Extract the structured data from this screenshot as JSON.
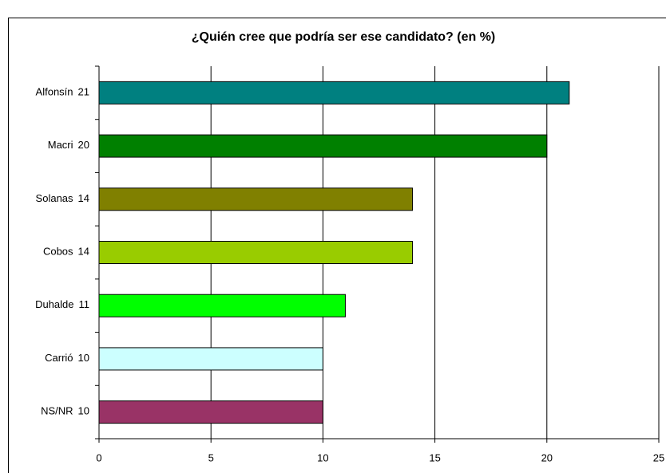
{
  "chart_data": {
    "type": "bar",
    "orientation": "horizontal",
    "title": "¿Quién cree que podría ser ese candidato? (en %)",
    "categories": [
      "Alfonsín",
      "Macri",
      "Solanas",
      "Cobos",
      "Duhalde",
      "Carrió",
      "NS/NR"
    ],
    "values": [
      21,
      20,
      14,
      14,
      11,
      10,
      10
    ],
    "colors": [
      "#008080",
      "#008000",
      "#808000",
      "#99cc00",
      "#00ff00",
      "#ccffff",
      "#993366"
    ],
    "xlim": [
      0,
      25
    ],
    "xticks": [
      0,
      5,
      10,
      15,
      20,
      25
    ],
    "grid": true
  }
}
